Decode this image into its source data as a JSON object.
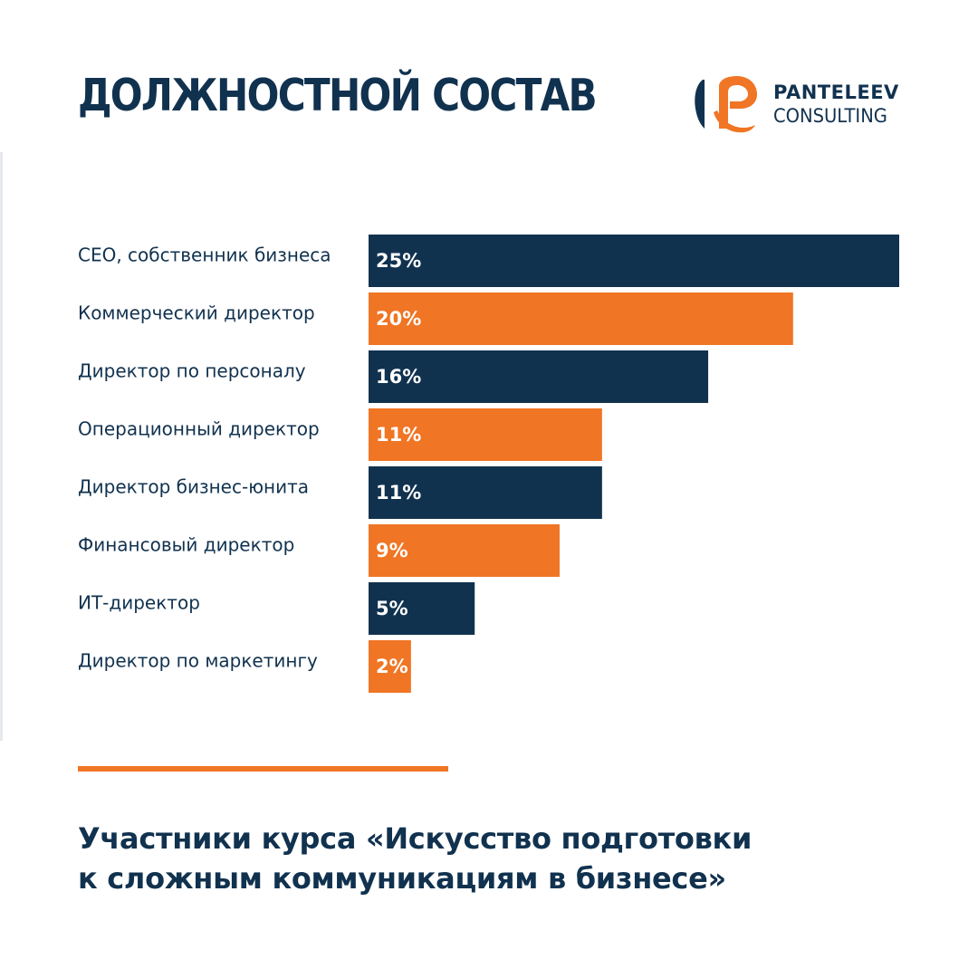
{
  "header": {
    "title": "ДОЛЖНОСТНОЙ СОСТАВ"
  },
  "logo": {
    "icon": "panteleev-logo-mark",
    "line1": "PANTELEEV",
    "line2": "CONSULTING",
    "colors": {
      "orange": "#f07524",
      "navy": "#11324f"
    }
  },
  "chart_data": {
    "type": "bar",
    "orientation": "horizontal",
    "categories": [
      "CEO, собственник бизнеса",
      "Коммерческий директор",
      "Директор по персоналу",
      "Операционный директор",
      "Директор бизнес-юнита",
      "Финансовый директор",
      "ИТ-директор",
      "Директор по маркетингу"
    ],
    "values": [
      25,
      20,
      16,
      11,
      11,
      9,
      5,
      2
    ],
    "value_labels": [
      "25%",
      "20%",
      "16%",
      "11%",
      "11%",
      "9%",
      "5%",
      "2%"
    ],
    "unit": "%",
    "colors": [
      "#11324f",
      "#f07524",
      "#11324f",
      "#f07524",
      "#11324f",
      "#f07524",
      "#11324f",
      "#f07524"
    ],
    "xlim": [
      0,
      25
    ],
    "grid": false,
    "legend": "none",
    "title": "",
    "xlabel": "",
    "ylabel": ""
  },
  "caption": {
    "line1": "Участники курса «Искусство подготовки",
    "line2": "к сложным коммуникациям в бизнесе»"
  }
}
